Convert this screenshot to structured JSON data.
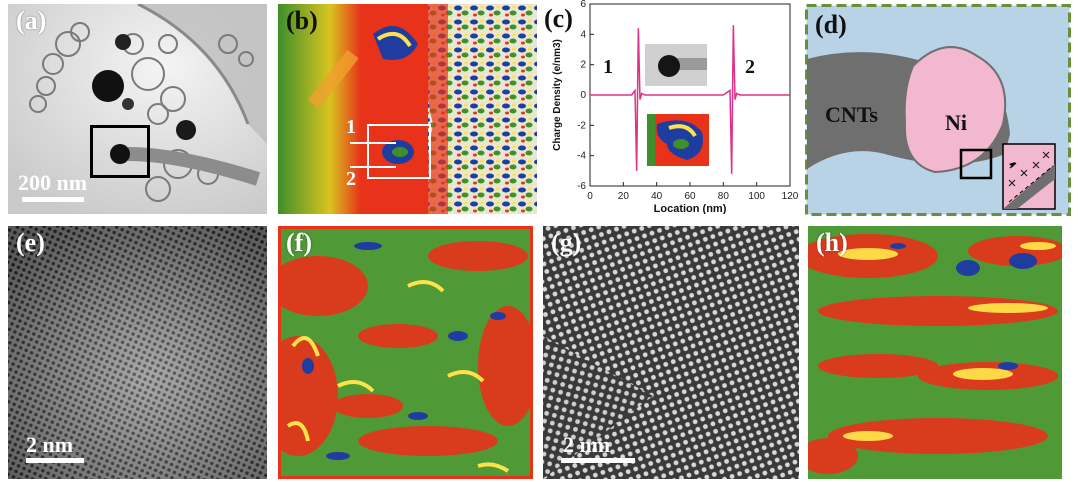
{
  "panels": {
    "a": {
      "label": "(a)",
      "scale": "200 nm"
    },
    "b": {
      "label": "(b)",
      "marker_1": "1",
      "marker_2": "2"
    },
    "c": {
      "label": "(c)",
      "marker_1": "1",
      "marker_2": "2"
    },
    "d": {
      "label": "(d)",
      "cnts_label": "CNTs",
      "ni_label": "Ni"
    },
    "e": {
      "label": "(e)",
      "scale": "2 nm"
    },
    "f": {
      "label": "(f)"
    },
    "g": {
      "label": "(g)",
      "scale": "2 nm"
    },
    "h": {
      "label": "(h)"
    }
  },
  "colors": {
    "line": "#e0308a",
    "phase_red": "#e8321a",
    "phase_green": "#3f8f2a",
    "phase_yellow": "#ffe24a",
    "phase_blue": "#1f3da0",
    "schematic_bg": "#b8d3e6",
    "ni_fill": "#f2b8cf",
    "cnt_fill": "#6f6f6f",
    "frame_green": "#6a8f3c"
  },
  "chart_data": {
    "type": "line",
    "title": "",
    "xlabel": "Location (nm)",
    "ylabel": "Charge Density (e/nm3)",
    "xlim": [
      0,
      120
    ],
    "ylim": [
      -6,
      6
    ],
    "xticks": [
      "0",
      "20",
      "40",
      "60",
      "80",
      "100",
      "120"
    ],
    "yticks": [
      "-6",
      "-4",
      "-2",
      "0",
      "2",
      "4",
      "6"
    ],
    "x": [
      0,
      20,
      25,
      27,
      28,
      29,
      30,
      31,
      33,
      40,
      60,
      80,
      84,
      85,
      86,
      87,
      88,
      90,
      100,
      120
    ],
    "y": [
      0,
      0,
      0,
      0.3,
      -5,
      4.4,
      -0.3,
      0.1,
      0,
      0,
      0,
      0,
      0.3,
      -5.2,
      4.6,
      -0.3,
      0.1,
      0,
      0,
      0
    ]
  }
}
